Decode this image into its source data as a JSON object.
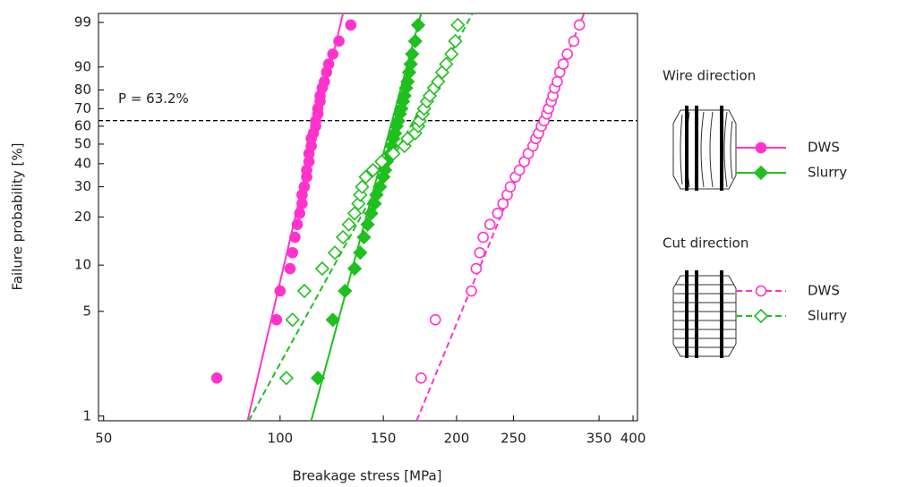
{
  "chart_data": {
    "type": "scatter",
    "x_label": "Breakage stress [MPa]",
    "y_label": "Failure probability [%]",
    "x_log": true,
    "y_scale": "weibull",
    "xlim": [
      49,
      407
    ],
    "ylim": [
      0.93,
      99.5
    ],
    "xticks": [
      50,
      100,
      150,
      200,
      250,
      350,
      400
    ],
    "yticks": [
      1,
      5,
      10,
      20,
      30,
      40,
      50,
      60,
      70,
      80,
      90,
      99
    ],
    "annotation": {
      "text": "P = 63.2%",
      "value": 63.2
    },
    "groups": [
      {
        "title": "Wire direction",
        "series": [
          {
            "name": "DWS",
            "color": "#ff33cc",
            "marker": "circle",
            "filled": true,
            "line": "solid",
            "x": [
              78,
              98.6,
              100,
              104,
              105,
              106,
              107,
              108,
              109,
              109,
              110,
              111,
              111,
              112,
              112,
              113,
              113,
              114,
              115,
              115,
              116,
              116,
              117,
              117,
              118,
              119,
              120,
              121,
              123,
              126,
              132
            ],
            "values": [
              1.8,
              4.4,
              6.8,
              9.5,
              12,
              15,
              18,
              21,
              24,
              27,
              30,
              34,
              37,
              41,
              45,
              49,
              53,
              56,
              60,
              63,
              67,
              70,
              74,
              77,
              81,
              84,
              88,
              91,
              94,
              96.8,
              98.8
            ],
            "fit": {
              "x": [
                88,
                128
              ],
              "values": [
                0.93,
                99.5
              ]
            }
          },
          {
            "name": "Slurry",
            "color": "#1fbf1f",
            "marker": "diamond",
            "filled": true,
            "line": "solid",
            "x": [
              116,
              123,
              129,
              134,
              137,
              139,
              141,
              143,
              145,
              146,
              148,
              150,
              151,
              152,
              154,
              155,
              156,
              157,
              158,
              159,
              160,
              161,
              162,
              163,
              164,
              165,
              166,
              167,
              168,
              170,
              172
            ],
            "values": [
              1.8,
              4.4,
              6.8,
              9.5,
              12,
              15,
              18,
              21,
              24,
              27,
              30,
              34,
              37,
              41,
              45,
              49,
              53,
              56,
              60,
              63,
              67,
              70,
              74,
              77,
              81,
              84,
              88,
              91,
              94,
              96.8,
              98.8
            ],
            "fit": {
              "x": [
                113,
                174
              ],
              "values": [
                0.93,
                99.5
              ]
            }
          }
        ]
      },
      {
        "title": "Cut direction",
        "series": [
          {
            "name": "DWS",
            "color": "#ff33cc",
            "marker": "circle",
            "filled": false,
            "line": "dashed",
            "x": [
              174,
              184,
              212,
              216,
              219,
              222,
              228,
              235,
              240,
              244,
              247,
              252,
              256,
              261,
              265,
              270,
              273,
              276,
              279,
              282,
              285,
              287,
              290,
              292,
              294,
              297,
              300,
              304,
              309,
              317,
              324
            ],
            "values": [
              1.8,
              4.4,
              6.8,
              9.5,
              12,
              15,
              18,
              21,
              24,
              27,
              30,
              34,
              37,
              41,
              45,
              49,
              53,
              56,
              60,
              63,
              67,
              70,
              74,
              77,
              81,
              84,
              88,
              91,
              94,
              96.8,
              98.8
            ],
            "fit": {
              "x": [
                171,
                330
              ],
              "values": [
                0.93,
                99.5
              ]
            }
          },
          {
            "name": "Slurry",
            "color": "#1fbf1f",
            "marker": "diamond",
            "filled": false,
            "line": "dashed",
            "x": [
              102.5,
              105,
              110,
              118,
              124,
              128,
              131,
              134,
              136,
              137,
              138,
              140,
              144,
              149,
              156,
              163,
              165,
              170,
              172,
              173,
              175,
              176,
              178,
              180,
              183,
              186,
              189,
              192,
              196,
              199,
              201
            ],
            "values": [
              1.8,
              4.4,
              6.8,
              9.5,
              12,
              15,
              18,
              21,
              24,
              27,
              30,
              34,
              37,
              41,
              45,
              49,
              53,
              56,
              60,
              63,
              67,
              70,
              74,
              77,
              81,
              84,
              88,
              91,
              94,
              96.8,
              98.8
            ],
            "fit": {
              "x": [
                88.4,
                213
              ],
              "values": [
                0.93,
                99.5
              ]
            }
          }
        ]
      }
    ]
  }
}
